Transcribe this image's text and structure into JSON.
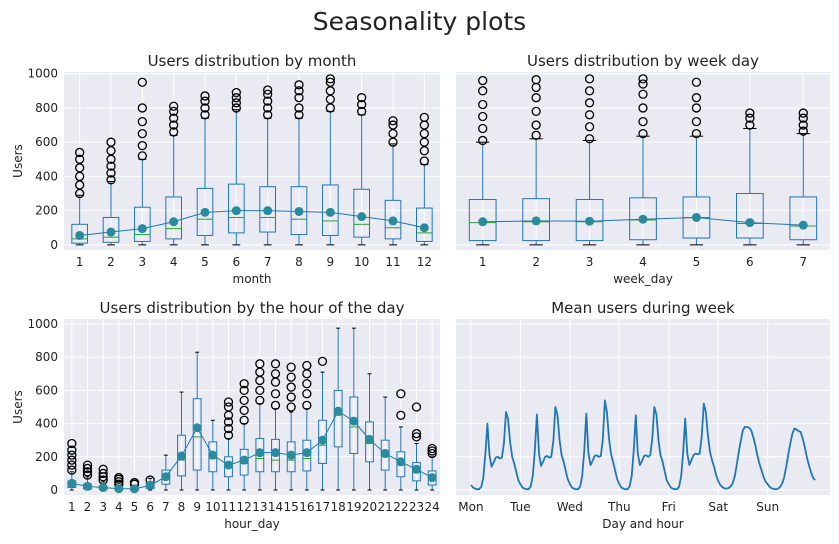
{
  "figure": {
    "title": "Seasonality plots"
  },
  "colors": {
    "panel_bg": "#EAEAF2",
    "grid": "#FFFFFF",
    "box": "#1F77B4",
    "median": "#2CA02C",
    "mean_marker": "#2A8A9E",
    "flier": "#000000"
  },
  "chart_data": [
    {
      "type": "box",
      "title": "Users distribution by month",
      "xlabel": "month",
      "ylabel": "Users",
      "ylim": [
        -30,
        1010
      ],
      "yticks": [
        0,
        200,
        400,
        600,
        800,
        1000
      ],
      "categories": [
        "1",
        "2",
        "3",
        "4",
        "5",
        "6",
        "7",
        "8",
        "9",
        "10",
        "11",
        "12"
      ],
      "grid": true,
      "boxes": [
        {
          "low": 0,
          "q1": 10,
          "median": 35,
          "q3": 120,
          "high": 290,
          "mean": 55,
          "fliers": [
            300,
            350,
            400,
            450,
            500,
            540
          ]
        },
        {
          "low": 0,
          "q1": 15,
          "median": 45,
          "q3": 160,
          "high": 370,
          "mean": 75,
          "fliers": [
            380,
            420,
            460,
            500,
            550,
            600
          ]
        },
        {
          "low": 0,
          "q1": 20,
          "median": 60,
          "q3": 220,
          "high": 500,
          "mean": 95,
          "fliers": [
            520,
            580,
            650,
            720,
            800,
            950
          ]
        },
        {
          "low": 0,
          "q1": 35,
          "median": 95,
          "q3": 280,
          "high": 640,
          "mean": 135,
          "fliers": [
            660,
            700,
            740,
            780,
            810
          ]
        },
        {
          "low": 0,
          "q1": 55,
          "median": 150,
          "q3": 330,
          "high": 740,
          "mean": 190,
          "fliers": [
            760,
            800,
            840,
            870
          ]
        },
        {
          "low": 0,
          "q1": 70,
          "median": 160,
          "q3": 355,
          "high": 790,
          "mean": 200,
          "fliers": [
            800,
            830,
            860,
            890
          ]
        },
        {
          "low": 0,
          "q1": 75,
          "median": 160,
          "q3": 340,
          "high": 740,
          "mean": 200,
          "fliers": [
            760,
            800,
            840,
            880,
            905
          ]
        },
        {
          "low": 0,
          "q1": 60,
          "median": 150,
          "q3": 340,
          "high": 740,
          "mean": 195,
          "fliers": [
            760,
            800,
            860,
            900,
            935
          ]
        },
        {
          "low": 0,
          "q1": 55,
          "median": 140,
          "q3": 350,
          "high": 780,
          "mean": 190,
          "fliers": [
            800,
            850,
            900,
            950,
            970
          ]
        },
        {
          "low": 0,
          "q1": 45,
          "median": 120,
          "q3": 325,
          "high": 760,
          "mean": 165,
          "fliers": [
            780,
            820,
            860
          ]
        },
        {
          "low": 0,
          "q1": 35,
          "median": 100,
          "q3": 260,
          "high": 590,
          "mean": 140,
          "fliers": [
            600,
            650,
            700,
            725
          ]
        },
        {
          "low": 0,
          "q1": 20,
          "median": 70,
          "q3": 215,
          "high": 470,
          "mean": 100,
          "fliers": [
            490,
            550,
            600,
            650,
            700,
            745
          ]
        }
      ]
    },
    {
      "type": "box",
      "title": "Users distribution by week day",
      "xlabel": "week_day",
      "ylim": [
        -30,
        1010
      ],
      "yticks": [
        0,
        200,
        400,
        600,
        800,
        1000
      ],
      "categories": [
        "1",
        "2",
        "3",
        "4",
        "5",
        "6",
        "7"
      ],
      "grid": true,
      "boxes": [
        {
          "low": 0,
          "q1": 25,
          "median": 130,
          "q3": 265,
          "high": 600,
          "mean": 135,
          "fliers": [
            610,
            680,
            750,
            820,
            900,
            960
          ]
        },
        {
          "low": 0,
          "q1": 25,
          "median": 135,
          "q3": 270,
          "high": 620,
          "mean": 140,
          "fliers": [
            640,
            700,
            780,
            860,
            920,
            965
          ]
        },
        {
          "low": 0,
          "q1": 25,
          "median": 135,
          "q3": 265,
          "high": 610,
          "mean": 138,
          "fliers": [
            620,
            690,
            760,
            830,
            900,
            970
          ]
        },
        {
          "low": 0,
          "q1": 30,
          "median": 145,
          "q3": 275,
          "high": 635,
          "mean": 150,
          "fliers": [
            650,
            720,
            800,
            880,
            940,
            970
          ]
        },
        {
          "low": 0,
          "q1": 40,
          "median": 160,
          "q3": 280,
          "high": 635,
          "mean": 160,
          "fliers": [
            650,
            720,
            800,
            860,
            950
          ]
        },
        {
          "low": 0,
          "q1": 40,
          "median": 125,
          "q3": 300,
          "high": 680,
          "mean": 130,
          "fliers": [
            700,
            740,
            770
          ]
        },
        {
          "low": 0,
          "q1": 30,
          "median": 110,
          "q3": 280,
          "high": 650,
          "mean": 115,
          "fliers": [
            665,
            700,
            740,
            770
          ]
        }
      ]
    },
    {
      "type": "box",
      "title": "Users distribution by the hour of the day",
      "xlabel": "hour_day",
      "ylabel": "Users",
      "ylim": [
        -30,
        1030
      ],
      "yticks": [
        0,
        200,
        400,
        600,
        800,
        1000
      ],
      "categories": [
        "1",
        "2",
        "3",
        "4",
        "5",
        "6",
        "7",
        "8",
        "9",
        "10",
        "11",
        "12",
        "13",
        "14",
        "15",
        "16",
        "17",
        "18",
        "19",
        "20",
        "21",
        "22",
        "23",
        "24"
      ],
      "grid": true,
      "boxes": [
        {
          "low": 0,
          "q1": 15,
          "median": 30,
          "q3": 55,
          "high": 110,
          "mean": 40,
          "fliers": [
            120,
            150,
            180,
            210,
            240,
            280
          ]
        },
        {
          "low": 0,
          "q1": 5,
          "median": 15,
          "q3": 35,
          "high": 80,
          "mean": 22,
          "fliers": [
            90,
            110,
            130,
            150
          ]
        },
        {
          "low": 0,
          "q1": 3,
          "median": 8,
          "q3": 20,
          "high": 50,
          "mean": 15,
          "fliers": [
            60,
            80,
            100,
            125
          ]
        },
        {
          "low": 0,
          "q1": 2,
          "median": 5,
          "q3": 12,
          "high": 28,
          "mean": 8,
          "fliers": [
            35,
            50,
            65,
            75
          ]
        },
        {
          "low": 0,
          "q1": 2,
          "median": 5,
          "q3": 12,
          "high": 28,
          "mean": 7,
          "fliers": [
            35,
            45
          ]
        },
        {
          "low": 0,
          "q1": 8,
          "median": 18,
          "q3": 40,
          "high": 70,
          "mean": 28,
          "fliers": [
            60
          ]
        },
        {
          "low": 0,
          "q1": 35,
          "median": 70,
          "q3": 120,
          "high": 210,
          "mean": 80,
          "fliers": []
        },
        {
          "low": 0,
          "q1": 85,
          "median": 180,
          "q3": 330,
          "high": 590,
          "mean": 205,
          "fliers": []
        },
        {
          "low": 0,
          "q1": 120,
          "median": 320,
          "q3": 550,
          "high": 830,
          "mean": 375,
          "fliers": []
        },
        {
          "low": 0,
          "q1": 110,
          "median": 190,
          "q3": 290,
          "high": 420,
          "mean": 210,
          "fliers": []
        },
        {
          "low": 0,
          "q1": 80,
          "median": 140,
          "q3": 200,
          "high": 310,
          "mean": 150,
          "fliers": [
            330,
            370,
            410,
            450,
            500,
            530
          ]
        },
        {
          "low": 0,
          "q1": 90,
          "median": 160,
          "q3": 245,
          "high": 400,
          "mean": 180,
          "fliers": [
            420,
            480,
            540,
            600,
            640
          ]
        },
        {
          "low": 0,
          "q1": 110,
          "median": 190,
          "q3": 310,
          "high": 520,
          "mean": 225,
          "fliers": [
            540,
            600,
            660,
            710,
            760
          ]
        },
        {
          "low": 0,
          "q1": 110,
          "median": 180,
          "q3": 305,
          "high": 490,
          "mean": 225,
          "fliers": [
            510,
            580,
            650,
            700,
            760
          ]
        },
        {
          "low": 0,
          "q1": 110,
          "median": 180,
          "q3": 290,
          "high": 470,
          "mean": 210,
          "fliers": [
            500,
            560,
            620,
            680,
            740
          ]
        },
        {
          "low": 0,
          "q1": 115,
          "median": 190,
          "q3": 300,
          "high": 490,
          "mean": 225,
          "fliers": [
            510,
            580,
            640,
            700,
            750
          ]
        },
        {
          "low": 0,
          "q1": 160,
          "median": 270,
          "q3": 420,
          "high": 710,
          "mean": 300,
          "fliers": [
            775
          ]
        },
        {
          "low": 0,
          "q1": 260,
          "median": 450,
          "q3": 600,
          "high": 975,
          "mean": 475,
          "fliers": []
        },
        {
          "low": 0,
          "q1": 220,
          "median": 380,
          "q3": 560,
          "high": 975,
          "mean": 415,
          "fliers": []
        },
        {
          "low": 0,
          "q1": 170,
          "median": 280,
          "q3": 410,
          "high": 700,
          "mean": 305,
          "fliers": []
        },
        {
          "low": 0,
          "q1": 120,
          "median": 200,
          "q3": 300,
          "high": 560,
          "mean": 220,
          "fliers": []
        },
        {
          "low": 0,
          "q1": 80,
          "median": 150,
          "q3": 230,
          "high": 380,
          "mean": 170,
          "fliers": [
            450,
            580
          ]
        },
        {
          "low": 0,
          "q1": 55,
          "median": 105,
          "q3": 165,
          "high": 280,
          "mean": 125,
          "fliers": [
            320,
            340,
            500
          ]
        },
        {
          "low": 0,
          "q1": 30,
          "median": 65,
          "q3": 115,
          "high": 200,
          "mean": 75,
          "fliers": [
            220,
            235,
            250
          ]
        }
      ]
    },
    {
      "type": "line",
      "title": "Mean users during week",
      "xlabel": "Day and hour",
      "ylim": [
        -30,
        1030
      ],
      "xticklabels": [
        "Mon",
        "Tue",
        "Wed",
        "Thu",
        "Fri",
        "Sat",
        "Sun"
      ],
      "grid": true,
      "x_per_day": 24,
      "days": [
        {
          "label": "Mon",
          "values": [
            30,
            15,
            8,
            5,
            5,
            20,
            75,
            220,
            400,
            210,
            140,
            165,
            195,
            200,
            190,
            195,
            280,
            470,
            430,
            290,
            200,
            160,
            110,
            60
          ]
        },
        {
          "label": "Tue",
          "values": [
            35,
            15,
            8,
            5,
            5,
            22,
            85,
            235,
            455,
            220,
            145,
            170,
            200,
            205,
            195,
            200,
            300,
            500,
            450,
            300,
            210,
            170,
            115,
            65
          ]
        },
        {
          "label": "Wed",
          "values": [
            35,
            15,
            8,
            5,
            5,
            22,
            85,
            240,
            460,
            225,
            150,
            175,
            205,
            210,
            200,
            205,
            305,
            540,
            470,
            310,
            215,
            170,
            115,
            65
          ]
        },
        {
          "label": "Thu",
          "values": [
            35,
            15,
            8,
            5,
            5,
            22,
            85,
            235,
            450,
            220,
            150,
            175,
            205,
            210,
            200,
            210,
            310,
            500,
            455,
            300,
            210,
            170,
            115,
            60
          ]
        },
        {
          "label": "Fri",
          "values": [
            35,
            15,
            8,
            5,
            5,
            20,
            80,
            230,
            430,
            220,
            150,
            180,
            210,
            220,
            215,
            220,
            320,
            520,
            470,
            330,
            230,
            180,
            140,
            90
          ]
        },
        {
          "label": "Sat",
          "values": [
            55,
            30,
            18,
            10,
            8,
            12,
            22,
            40,
            80,
            150,
            230,
            300,
            360,
            380,
            380,
            375,
            360,
            320,
            270,
            210,
            160,
            120,
            80,
            50
          ]
        },
        {
          "label": "Sun",
          "values": [
            35,
            18,
            10,
            6,
            5,
            8,
            18,
            38,
            75,
            140,
            215,
            280,
            340,
            370,
            365,
            355,
            350,
            310,
            260,
            200,
            150,
            110,
            75,
            60
          ]
        }
      ]
    }
  ]
}
